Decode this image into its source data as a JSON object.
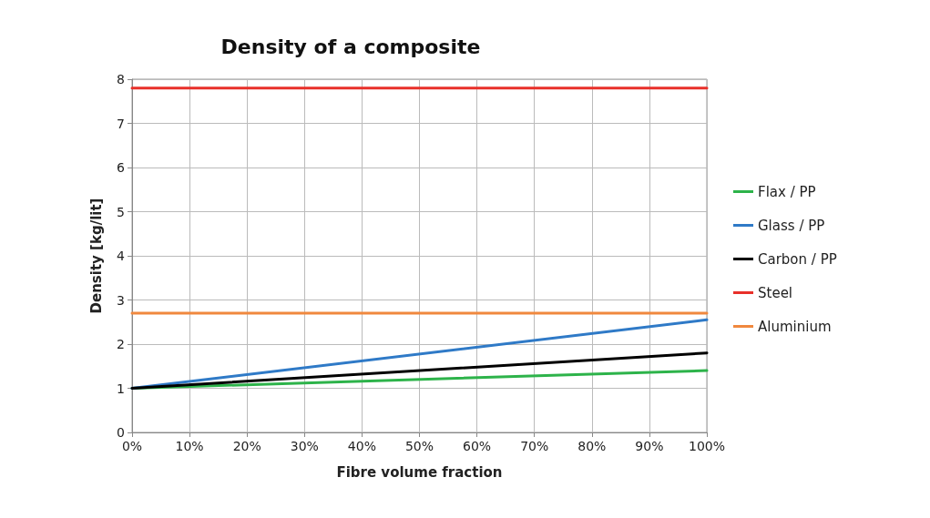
{
  "chart_data": {
    "type": "line",
    "title": "Density of a composite",
    "xlabel": "Fibre volume fraction",
    "ylabel": "Density [kg/lit]",
    "x": [
      0,
      100
    ],
    "series": [
      {
        "name": "Flax / PP",
        "color": "#2db34a",
        "values": [
          1,
          1.4
        ]
      },
      {
        "name": "Glass / PP",
        "color": "#2f7ac7",
        "values": [
          1,
          2.55
        ]
      },
      {
        "name": "Carbon / PP",
        "color": "#000000",
        "values": [
          1,
          1.8
        ]
      },
      {
        "name": "Steel",
        "color": "#e8302a",
        "values": [
          7.8,
          7.8
        ]
      },
      {
        "name": "Aluminium",
        "color": "#f0883e",
        "values": [
          2.7,
          2.7
        ]
      }
    ],
    "xlim": [
      0,
      100
    ],
    "xticks": [
      {
        "value": 0,
        "label": "0%"
      },
      {
        "value": 10,
        "label": "10%"
      },
      {
        "value": 20,
        "label": "20%"
      },
      {
        "value": 30,
        "label": "30%"
      },
      {
        "value": 40,
        "label": "40%"
      },
      {
        "value": 50,
        "label": "50%"
      },
      {
        "value": 60,
        "label": "60%"
      },
      {
        "value": 70,
        "label": "70%"
      },
      {
        "value": 80,
        "label": "80%"
      },
      {
        "value": 90,
        "label": "90%"
      },
      {
        "value": 100,
        "label": "100%"
      }
    ],
    "ylim": [
      0,
      8
    ],
    "yticks": [
      0,
      1,
      2,
      3,
      4,
      5,
      6,
      7,
      8
    ],
    "grid": true,
    "legend": "right",
    "marker": "none",
    "line_style": "solid"
  }
}
